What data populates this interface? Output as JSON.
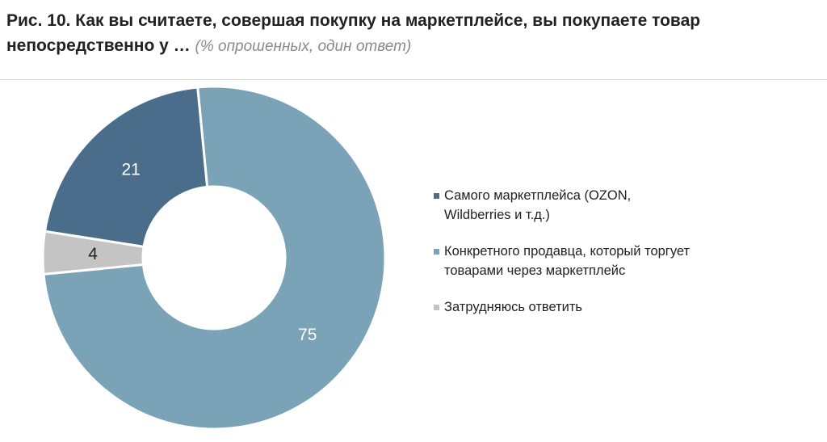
{
  "title": {
    "main": "Рис. 10. Как вы считаете, совершая покупку на маркетплейсе, вы покупаете товар непосредственно у …",
    "sub": "(% опрошенных, один ответ)"
  },
  "chart_data": {
    "type": "pie",
    "variant": "donut",
    "categories": [
      "Конкретного продавца, который торгует товарами через маркетплейс",
      "Затрудняюсь ответить",
      "Самого маркетплейса (OZON, Wildberries и т.д.)"
    ],
    "values": [
      75,
      4,
      21
    ],
    "colors": [
      "#7ba3b8",
      "#c4c4c4",
      "#4a6d8c"
    ],
    "label_colors": [
      "#ffffff",
      "#222222",
      "#ffffff"
    ],
    "legend": {
      "placement": "right",
      "entries": [
        {
          "label": "Самого маркетплейса (OZON, Wildberries и т.д.)",
          "color": "#4a6d8c"
        },
        {
          "label": "Конкретного продавца, который торгует товарами через маркетплейс",
          "color": "#7ba3b8"
        },
        {
          "label": "Затрудняюсь ответить",
          "color": "#c4c4c4"
        }
      ]
    }
  }
}
